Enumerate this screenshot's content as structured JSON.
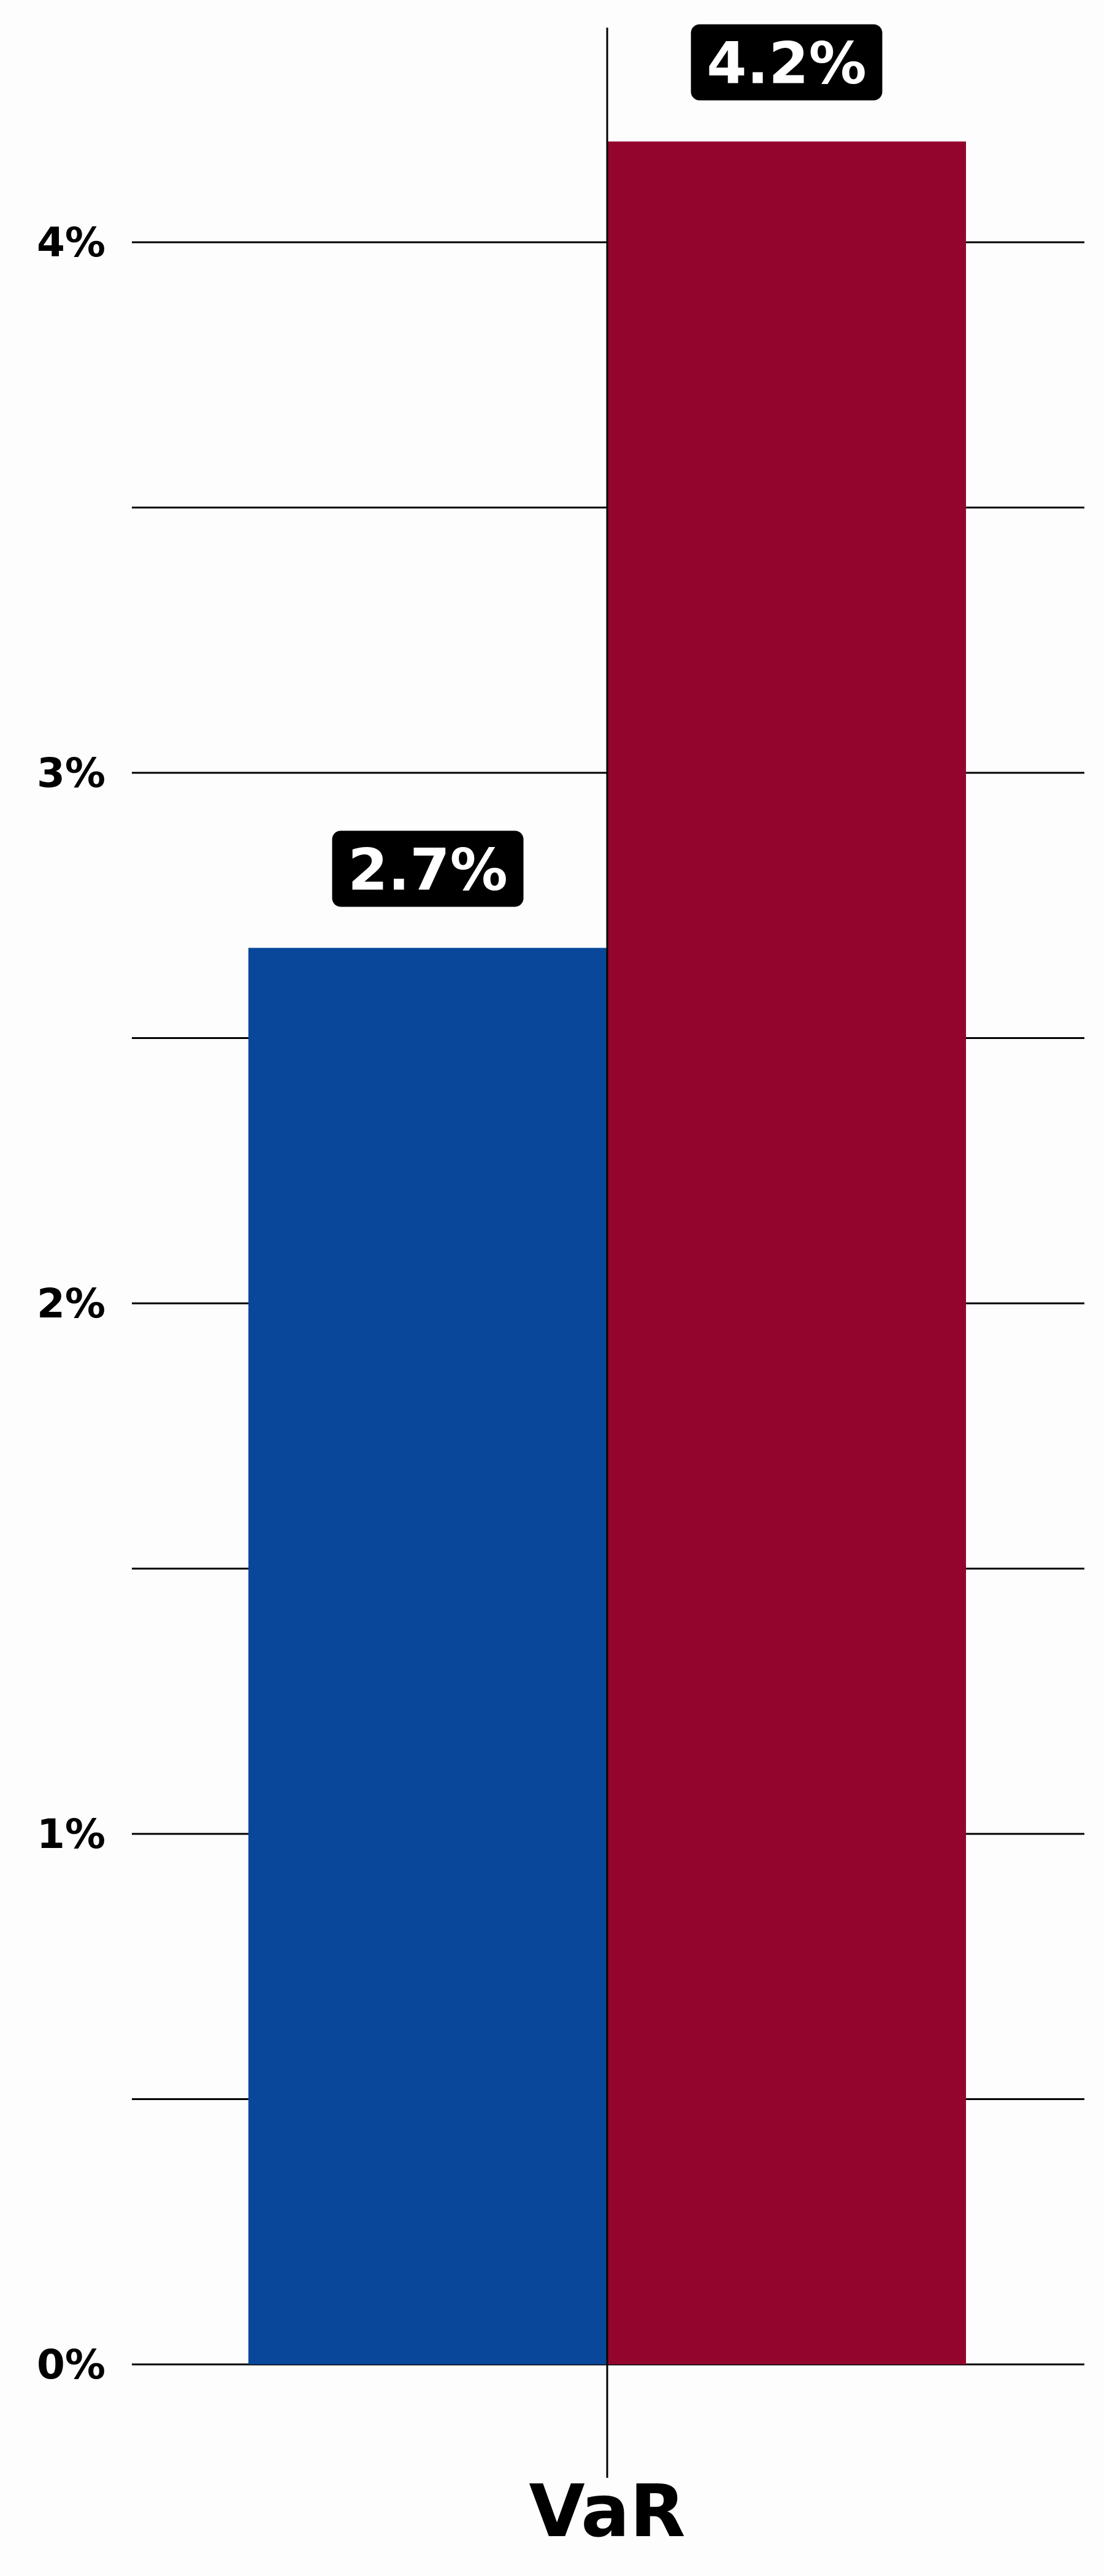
{
  "chart_data": {
    "type": "bar",
    "categories": [
      "VaR"
    ],
    "series": [
      {
        "values": [
          2.67
        ],
        "color": "#08479a",
        "label": "2.7%"
      },
      {
        "values": [
          4.19
        ],
        "color": "#94052e",
        "label": "4.2%"
      }
    ],
    "ylim": [
      0,
      4.35
    ],
    "yticks": [
      {
        "value": 0,
        "label": "0%"
      },
      {
        "value": 1,
        "label": "1%"
      },
      {
        "value": 2,
        "label": "2%"
      },
      {
        "value": 3,
        "label": "3%"
      },
      {
        "value": 4,
        "label": "4%"
      }
    ],
    "minor_yticks": [
      0.5,
      1.5,
      2.5,
      3.5
    ],
    "grid": true,
    "data_label_box_color": "#000000"
  }
}
